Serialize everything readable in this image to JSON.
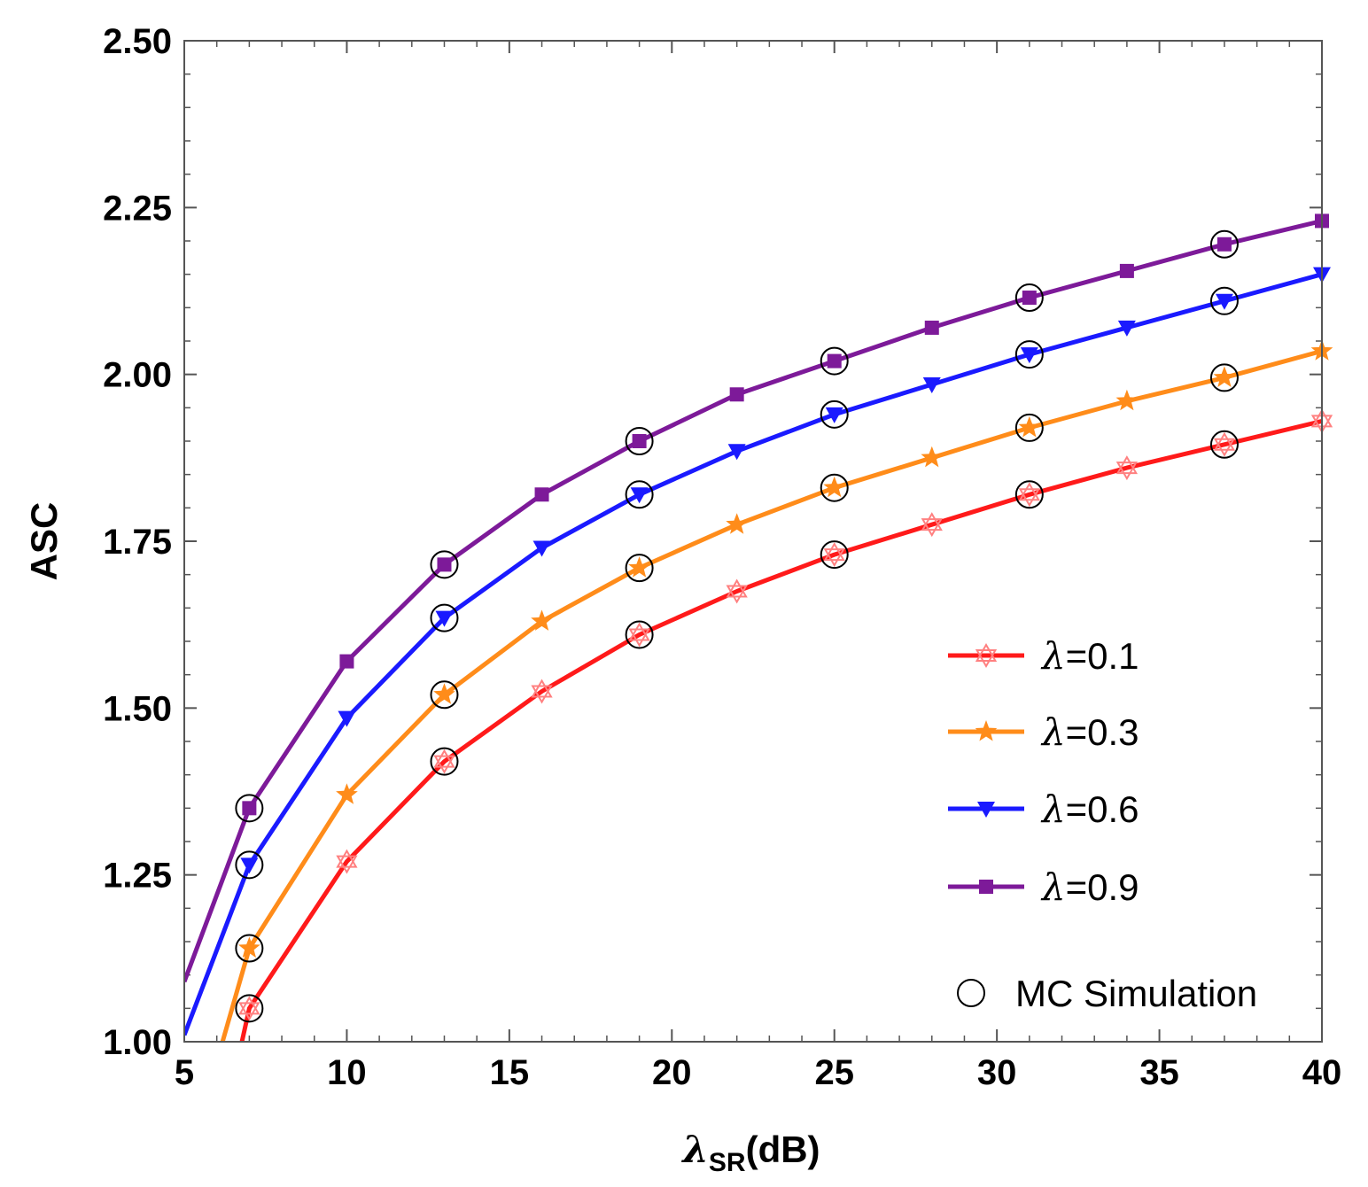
{
  "chart_data": {
    "type": "line",
    "title": "",
    "xlabel_symbol": "λ",
    "xlabel_subscript": "SR",
    "xlabel_suffix": "(dB)",
    "ylabel": "ASC",
    "xlim": [
      5,
      40
    ],
    "ylim": [
      1.0,
      2.5
    ],
    "xticks": [
      5,
      10,
      15,
      20,
      25,
      30,
      35,
      40
    ],
    "yticks": [
      1.0,
      1.25,
      1.5,
      1.75,
      2.0,
      2.25,
      2.5
    ],
    "ytick_labels": [
      "1.00",
      "1.25",
      "1.50",
      "1.75",
      "2.00",
      "2.25",
      "2.50"
    ],
    "grid": false,
    "legend_position": "bottom-right",
    "series": [
      {
        "name": "λ=0.1",
        "legend_symbol": "λ",
        "legend_value": "=0.1",
        "color": "#ff1a1a",
        "marker": "hexagram",
        "x": [
          5.5,
          7,
          10,
          13,
          16,
          19,
          22,
          25,
          28,
          31,
          34,
          37,
          40
        ],
        "values": [
          0.72,
          1.05,
          1.27,
          1.42,
          1.525,
          1.61,
          1.675,
          1.73,
          1.775,
          1.82,
          1.86,
          1.895,
          1.93
        ],
        "marker_x": [
          7,
          10,
          13,
          16,
          19,
          22,
          25,
          28,
          31,
          34,
          37,
          40
        ],
        "marker_values": [
          1.05,
          1.27,
          1.42,
          1.525,
          1.61,
          1.675,
          1.73,
          1.775,
          1.82,
          1.86,
          1.895,
          1.93
        ]
      },
      {
        "name": "λ=0.3",
        "legend_symbol": "λ",
        "legend_value": "=0.3",
        "color": "#ff8c1a",
        "marker": "star",
        "x": [
          5,
          7,
          10,
          13,
          16,
          19,
          22,
          25,
          28,
          31,
          34,
          37,
          40
        ],
        "values": [
          0.8,
          1.14,
          1.37,
          1.52,
          1.63,
          1.71,
          1.775,
          1.83,
          1.875,
          1.92,
          1.96,
          1.995,
          2.035
        ],
        "marker_x": [
          7,
          10,
          13,
          16,
          19,
          22,
          25,
          28,
          31,
          34,
          37,
          40
        ],
        "marker_values": [
          1.14,
          1.37,
          1.52,
          1.63,
          1.71,
          1.775,
          1.83,
          1.875,
          1.92,
          1.96,
          1.995,
          2.035
        ]
      },
      {
        "name": "λ=0.6",
        "legend_symbol": "λ",
        "legend_value": "=0.6",
        "color": "#1a1aff",
        "marker": "triangle-down",
        "x": [
          5,
          7,
          10,
          13,
          16,
          19,
          22,
          25,
          28,
          31,
          34,
          37,
          40
        ],
        "values": [
          1.01,
          1.265,
          1.485,
          1.635,
          1.74,
          1.82,
          1.885,
          1.94,
          1.985,
          2.03,
          2.07,
          2.11,
          2.15
        ],
        "marker_x": [
          7,
          10,
          13,
          16,
          19,
          22,
          25,
          28,
          31,
          34,
          37,
          40
        ],
        "marker_values": [
          1.265,
          1.485,
          1.635,
          1.74,
          1.82,
          1.885,
          1.94,
          1.985,
          2.03,
          2.07,
          2.11,
          2.15
        ]
      },
      {
        "name": "λ=0.9",
        "legend_symbol": "λ",
        "legend_value": "=0.9",
        "color": "#7d1a99",
        "marker": "square",
        "x": [
          5,
          7,
          10,
          13,
          16,
          19,
          22,
          25,
          28,
          31,
          34,
          37,
          40
        ],
        "values": [
          1.09,
          1.35,
          1.57,
          1.715,
          1.82,
          1.9,
          1.97,
          2.02,
          2.07,
          2.115,
          2.155,
          2.195,
          2.23
        ],
        "marker_x": [
          7,
          10,
          13,
          16,
          19,
          22,
          25,
          28,
          31,
          34,
          37,
          40
        ],
        "marker_values": [
          1.35,
          1.57,
          1.715,
          1.82,
          1.9,
          1.97,
          2.02,
          2.07,
          2.115,
          2.155,
          2.195,
          2.23
        ]
      }
    ],
    "mc_simulation": {
      "name": "MC Simulation",
      "marker": "circle-open",
      "color": "#000000",
      "x": [
        7,
        13,
        19,
        25,
        31,
        37
      ],
      "series_index": [
        0,
        1,
        2,
        3
      ]
    }
  }
}
